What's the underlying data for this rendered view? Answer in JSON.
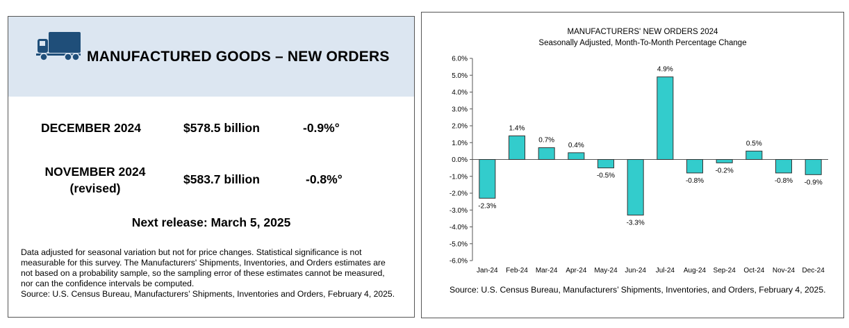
{
  "left_panel": {
    "headline": "MANUFACTURED GOODS – NEW ORDERS",
    "rows": [
      {
        "period": "DECEMBER 2024",
        "sub": "",
        "value": "$578.5 billion",
        "change": "-0.9%°"
      },
      {
        "period": "NOVEMBER 2024",
        "sub": "(revised)",
        "value": "$583.7 billion",
        "change": "-0.8%°"
      }
    ],
    "next_release": "Next release: March 5, 2025",
    "footnote_lines": [
      "Data adjusted for seasonal variation but not for price changes. Statistical significance is not",
      "measurable for this survey.  The Manufacturers' Shipments, Inventories, and Orders estimates are",
      "not based on a probability sample, so the sampling error of these estimates cannot be measured,",
      "nor can the confidence intervals be computed.",
      "Source: U.S. Census Bureau, Manufacturers’ Shipments, Inventories and Orders, February 4, 2025."
    ],
    "truck_icon": "truck-icon",
    "header_bg": "#dce6f1",
    "truck_color": "#1f4e79"
  },
  "right_panel": {
    "source": "Source: U.S. Census Bureau, Manufacturers’ Shipments, Inventories, and Orders, February 4, 2025."
  },
  "chart_data": {
    "type": "bar",
    "title": "MANUFACTURERS' NEW ORDERS 2024",
    "subtitle": "Seasonally Adjusted,  Month-To-Month Percentage Change",
    "categories": [
      "Jan-24",
      "Feb-24",
      "Mar-24",
      "Apr-24",
      "May-24",
      "Jun-24",
      "Jul-24",
      "Aug-24",
      "Sep-24",
      "Oct-24",
      "Nov-24",
      "Dec-24"
    ],
    "values": [
      -2.3,
      1.4,
      0.7,
      0.4,
      -0.5,
      -3.3,
      4.9,
      -0.8,
      -0.2,
      0.5,
      -0.8,
      -0.9
    ],
    "labels": [
      "-2.3%",
      "1.4%",
      "0.7%",
      "0.4%",
      "-0.5%",
      "-3.3%",
      "4.9%",
      "-0.8%",
      "-0.2%",
      "0.5%",
      "-0.8%",
      "-0.9%"
    ],
    "yticks": [
      6,
      5,
      4,
      3,
      2,
      1,
      0,
      -1,
      -2,
      -3,
      -4,
      -5,
      -6
    ],
    "ytick_labels": [
      "6.0%",
      "5.0%",
      "4.0%",
      "3.0%",
      "2.0%",
      "1.0%",
      "0.0%",
      "-1.0%",
      "-2.0%",
      "-3.0%",
      "-4.0%",
      "-5.0%",
      "-6.0%"
    ],
    "ylim": [
      -6,
      6
    ],
    "xlabel": "",
    "ylabel": "",
    "grid": false,
    "bar_color": "#33cccc"
  }
}
